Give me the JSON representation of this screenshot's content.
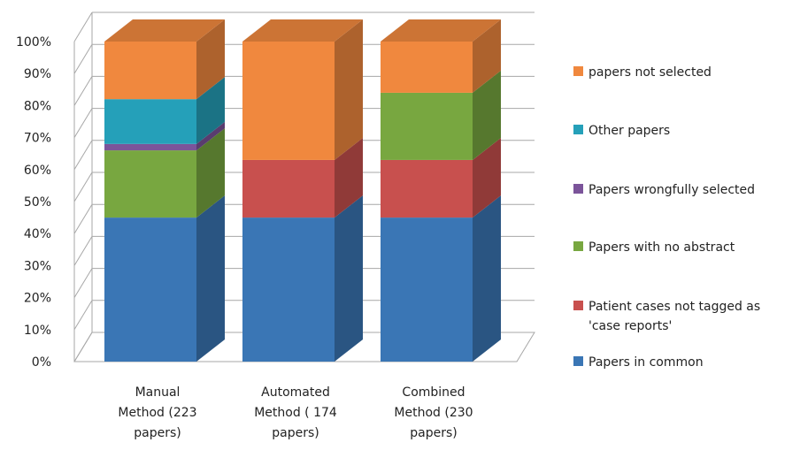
{
  "chart_data": {
    "type": "bar",
    "subtype": "stacked-100-3d",
    "categories": [
      [
        "Manual",
        "Method (223",
        "papers)"
      ],
      [
        "Automated",
        "Method ( 174",
        "papers)"
      ],
      [
        "Combined",
        "Method (230",
        "papers)"
      ]
    ],
    "ylim": [
      0,
      100
    ],
    "yticks": [
      "0%",
      "10%",
      "20%",
      "30%",
      "40%",
      "50%",
      "60%",
      "70%",
      "80%",
      "90%",
      "100%"
    ],
    "legend_position": "right",
    "series": [
      {
        "name": "Papers in common",
        "color": "#3a76b5",
        "values": [
          45,
          45,
          45
        ]
      },
      {
        "name": "Patient cases not tagged as 'case reports'",
        "legend_lines": [
          "Patient cases not tagged as",
          "'case reports'"
        ],
        "color": "#c8504e",
        "values": [
          0,
          18,
          18
        ]
      },
      {
        "name": "Papers with no abstract",
        "color": "#78a740",
        "values": [
          21,
          0,
          21
        ]
      },
      {
        "name": "Papers wrongfully selected",
        "color": "#7b549a",
        "values": [
          2,
          0,
          0
        ]
      },
      {
        "name": "Other papers",
        "color": "#25a0b9",
        "values": [
          14,
          0,
          0
        ]
      },
      {
        "name": "papers not selected",
        "color": "#f0883e",
        "values": [
          18,
          37,
          16
        ]
      }
    ]
  }
}
